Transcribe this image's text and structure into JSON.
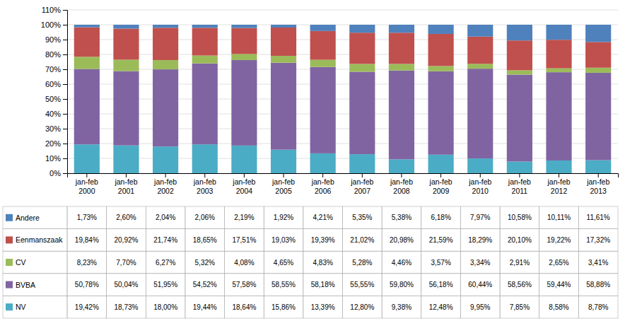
{
  "chart_data": {
    "type": "bar",
    "stacked": true,
    "grid": true,
    "categories": [
      "jan-feb\n2000",
      "jan-feb\n2001",
      "jan-feb\n2002",
      "jan-feb\n2003",
      "jan-feb\n2004",
      "jan-feb\n2005",
      "jan-feb\n2006",
      "jan-feb\n2007",
      "jan-feb\n2008",
      "jan-feb\n2009",
      "jan-feb\n2010",
      "jan-feb\n2011",
      "jan-feb\n2012",
      "jan-feb\n2013"
    ],
    "series": [
      {
        "name": "NV",
        "color": "#4bacc6",
        "values": [
          19.42,
          18.73,
          18.0,
          19.44,
          18.64,
          15.86,
          13.39,
          12.8,
          9.38,
          12.48,
          9.95,
          7.85,
          8.58,
          8.78
        ],
        "value_labels": [
          "19,42%",
          "18,73%",
          "18,00%",
          "19,44%",
          "18,64%",
          "15,86%",
          "13,39%",
          "12,80%",
          "9,38%",
          "12,48%",
          "9,95%",
          "7,85%",
          "8,58%",
          "8,78%"
        ]
      },
      {
        "name": "BVBA",
        "color": "#8064a2",
        "values": [
          50.78,
          50.04,
          51.95,
          54.52,
          57.58,
          58.55,
          58.18,
          55.55,
          59.8,
          56.18,
          60.44,
          58.56,
          59.44,
          58.88
        ],
        "value_labels": [
          "50,78%",
          "50,04%",
          "51,95%",
          "54,52%",
          "57,58%",
          "58,55%",
          "58,18%",
          "55,55%",
          "59,80%",
          "56,18%",
          "60,44%",
          "58,56%",
          "59,44%",
          "58,88%"
        ]
      },
      {
        "name": "CV",
        "color": "#9bbb59",
        "values": [
          8.23,
          7.7,
          6.27,
          5.32,
          4.08,
          4.65,
          4.83,
          5.28,
          4.46,
          3.57,
          3.34,
          2.91,
          2.65,
          3.41
        ],
        "value_labels": [
          "8,23%",
          "7,70%",
          "6,27%",
          "5,32%",
          "4,08%",
          "4,65%",
          "4,83%",
          "5,28%",
          "4,46%",
          "3,57%",
          "3,34%",
          "2,91%",
          "2,65%",
          "3,41%"
        ]
      },
      {
        "name": "Eenmanszaak",
        "color": "#c0504d",
        "values": [
          19.84,
          20.92,
          21.74,
          18.65,
          17.51,
          19.03,
          19.39,
          21.02,
          20.98,
          21.59,
          18.29,
          20.1,
          19.22,
          17.32
        ],
        "value_labels": [
          "19,84%",
          "20,92%",
          "21,74%",
          "18,65%",
          "17,51%",
          "19,03%",
          "19,39%",
          "21,02%",
          "20,98%",
          "21,59%",
          "18,29%",
          "20,10%",
          "19,22%",
          "17,32%"
        ]
      },
      {
        "name": "Andere",
        "color": "#4f81bd",
        "values": [
          1.73,
          2.6,
          2.04,
          2.06,
          2.19,
          1.92,
          4.21,
          5.35,
          5.38,
          6.18,
          7.97,
          10.58,
          10.11,
          11.61
        ],
        "value_labels": [
          "1,73%",
          "2,60%",
          "2,04%",
          "2,06%",
          "2,19%",
          "1,92%",
          "4,21%",
          "5,35%",
          "5,38%",
          "6,18%",
          "7,97%",
          "10,58%",
          "10,11%",
          "11,61%"
        ]
      }
    ],
    "ylim": [
      0,
      110
    ],
    "yticks": [
      {
        "value": 0,
        "label": "0%"
      },
      {
        "value": 10,
        "label": "10%"
      },
      {
        "value": 20,
        "label": "20%"
      },
      {
        "value": 30,
        "label": "30%"
      },
      {
        "value": 40,
        "label": "40%"
      },
      {
        "value": 50,
        "label": "50%"
      },
      {
        "value": 60,
        "label": "60%"
      },
      {
        "value": 70,
        "label": "70%"
      },
      {
        "value": 80,
        "label": "80%"
      },
      {
        "value": 90,
        "label": "90%"
      },
      {
        "value": 100,
        "label": "100%"
      },
      {
        "value": 110,
        "label": "110%"
      }
    ]
  }
}
